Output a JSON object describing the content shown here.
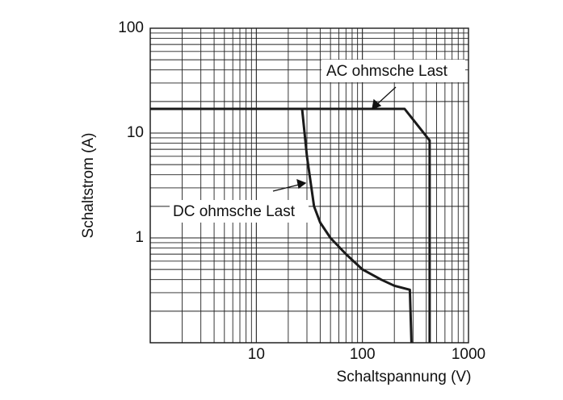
{
  "chart_data": {
    "type": "line",
    "xlabel": "Schaltspannung (V)",
    "ylabel": "Schaltstrom (A)",
    "xscale": "log",
    "yscale": "log",
    "grid": true,
    "xlim": [
      1,
      1000
    ],
    "ylim": [
      0.1,
      100
    ],
    "xticks": [
      10,
      100,
      1000
    ],
    "yticks": [
      1,
      10,
      100
    ],
    "series": [
      {
        "name": "AC ohmsche Last",
        "color": "#1a1a1a",
        "x": [
          1,
          250,
          430,
          430
        ],
        "values": [
          17,
          17,
          8.5,
          0.1
        ]
      },
      {
        "name": "DC ohmsche Last",
        "color": "#1a1a1a",
        "x": [
          1,
          27,
          30,
          35,
          40,
          50,
          70,
          100,
          150,
          200,
          280,
          290
        ],
        "values": [
          17,
          17,
          6,
          2,
          1.4,
          1,
          0.7,
          0.5,
          0.4,
          0.35,
          0.32,
          0.1
        ]
      }
    ]
  }
}
